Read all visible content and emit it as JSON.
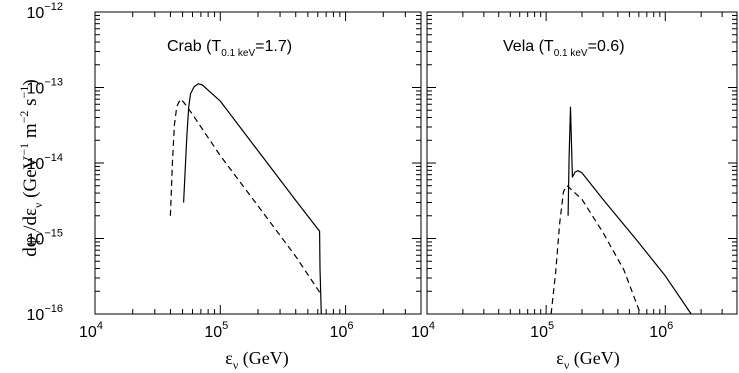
{
  "chart_data": [
    {
      "type": "line",
      "annotation": {
        "main": "Crab (T",
        "sub": "0.1 keV",
        "tail": "=1.7)"
      },
      "xscale": "log",
      "yscale": "log",
      "xlim": [
        10000,
        4000000
      ],
      "ylim": [
        1e-16,
        1e-12
      ],
      "x_ticks": [
        {
          "value": 10000,
          "base": "10",
          "exp": "4"
        },
        {
          "value": 100000,
          "base": "10",
          "exp": "5"
        },
        {
          "value": 1000000,
          "base": "10",
          "exp": "6"
        }
      ],
      "y_ticks": [
        {
          "value": 1e-16,
          "base": "10",
          "exp": "−16"
        },
        {
          "value": 1e-15,
          "base": "10",
          "exp": "−15"
        },
        {
          "value": 1e-14,
          "base": "10",
          "exp": "−14"
        },
        {
          "value": 1e-13,
          "base": "10",
          "exp": "−13"
        },
        {
          "value": 1e-12,
          "base": "10",
          "exp": "−12"
        }
      ],
      "series": [
        {
          "style": "solid",
          "x": [
            51000,
            54000,
            56000,
            58000,
            62000,
            67000,
            72000,
            80000,
            100000,
            200000,
            400000,
            620000,
            625000,
            640000
          ],
          "y": [
            3e-15,
            2.2e-14,
            5.5e-14,
            8.3e-14,
            1.03e-13,
            1.12e-13,
            1.08e-13,
            9.2e-14,
            6.6e-14,
            1.45e-14,
            3.2e-15,
            1.25e-15,
            4e-16,
            1e-16
          ]
        },
        {
          "style": "dashed",
          "x": [
            40000,
            41500,
            43000,
            45000,
            48000,
            51000,
            60000,
            100000,
            200000,
            400000,
            640000
          ],
          "y": [
            2e-15,
            1e-14,
            3.2e-14,
            5.6e-14,
            7e-14,
            6.4e-14,
            4.4e-14,
            1.25e-14,
            2.7e-15,
            5.8e-16,
            1.8e-16
          ]
        }
      ]
    },
    {
      "type": "line",
      "annotation": {
        "main": "Vela (T",
        "sub": "0.1 keV",
        "tail": "=0.6)"
      },
      "xscale": "log",
      "yscale": "log",
      "xlim": [
        10000,
        4000000
      ],
      "ylim": [
        1e-16,
        1e-12
      ],
      "x_ticks": [
        {
          "value": 10000,
          "base": "10",
          "exp": "4"
        },
        {
          "value": 100000,
          "base": "10",
          "exp": "5"
        },
        {
          "value": 1000000,
          "base": "10",
          "exp": "6"
        }
      ],
      "y_ticks": [],
      "series": [
        {
          "style": "solid",
          "x": [
            153000,
            156000,
            160000,
            166000,
            175000,
            185000,
            200000,
            300000,
            600000,
            1000000,
            1650000
          ],
          "y": [
            2e-15,
            1.2e-14,
            5.5e-14,
            6.5e-15,
            7.6e-15,
            7.9e-15,
            7.4e-15,
            3.3e-15,
            8.8e-16,
            3.2e-16,
            1e-16
          ]
        },
        {
          "style": "dashed",
          "x": [
            110000,
            120000,
            130000,
            140000,
            150000,
            200000,
            300000,
            450000,
            620000
          ],
          "y": [
            1e-16,
            3.5e-16,
            1.6e-15,
            4.2e-15,
            5e-15,
            3.3e-15,
            1.2e-15,
            3.8e-16,
            1e-16
          ]
        }
      ]
    }
  ],
  "axes": {
    "ylabel": {
      "a": "dφ",
      "a_sub": "ν",
      "b": "/dε",
      "b_sub": "ν",
      "c": " (GeV",
      "c_sup": "−1",
      "d": " m",
      "d_sup": "−2",
      "e": " s",
      "e_sup": "−1",
      "f": ")"
    },
    "xlabel_left": {
      "sym": "ε",
      "sub": "ν",
      "unit": " (GeV)"
    },
    "xlabel_right": {
      "sym": "ε",
      "sub": "ν",
      "unit": " (GeV)"
    }
  }
}
